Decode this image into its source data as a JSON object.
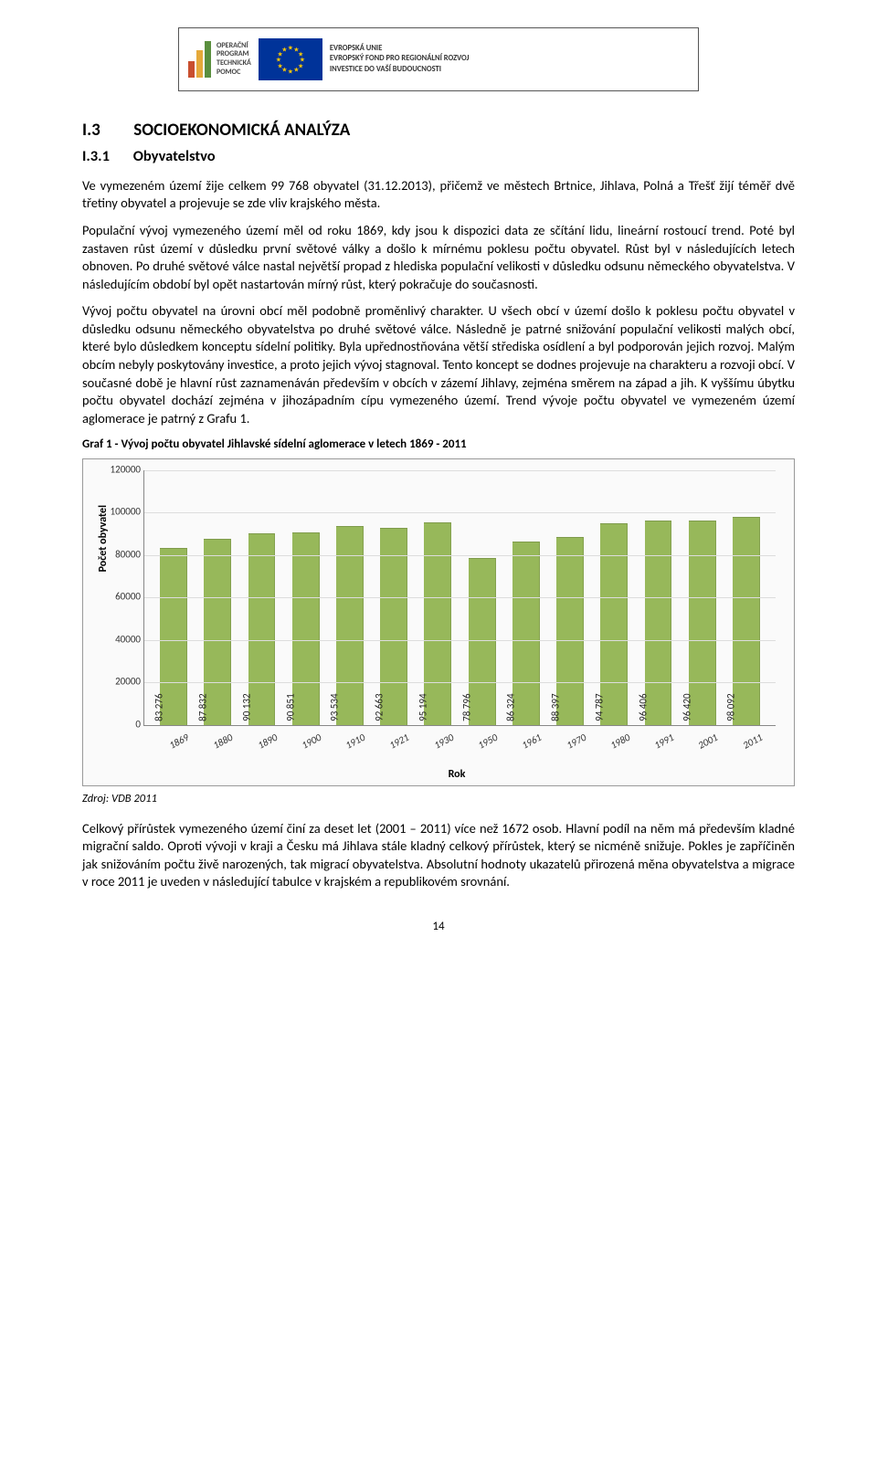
{
  "banner": {
    "program_lines": [
      "OPERAČNÍ",
      "PROGRAM",
      "TECHNICKÁ",
      "POMOC"
    ],
    "eu_lines": [
      "EVROPSKÁ UNIE",
      "EVROPSKÝ FOND PRO REGIONÁLNÍ ROZVOJ",
      "INVESTICE DO VAŠÍ BUDOUCNOSTI"
    ],
    "logo_colors": [
      "#c94f2f",
      "#e5a93a",
      "#5a8f3e"
    ]
  },
  "heading1_num": "I.3",
  "heading1_text": "SOCIOEKONOMICKÁ ANALÝZA",
  "heading2_num": "I.3.1",
  "heading2_text": "Obyvatelstvo",
  "p1": "Ve vymezeném území žije celkem 99 768 obyvatel (31.12.2013), přičemž ve městech Brtnice, Jihlava, Polná a Třešť žijí téměř dvě třetiny obyvatel a projevuje se zde vliv krajského města.",
  "p2": "Populační vývoj vymezeného území měl od roku 1869, kdy jsou k dispozici data ze sčítání lidu, lineární rostoucí trend. Poté byl zastaven růst území v důsledku první světové války a došlo k mírnému poklesu počtu obyvatel. Růst byl v následujících letech obnoven. Po druhé světové válce nastal největší propad z hlediska populační velikosti v důsledku odsunu německého obyvatelstva. V následujícím období byl opět nastartován mírný růst, který pokračuje do současnosti.",
  "p3": "Vývoj počtu obyvatel na úrovni obcí měl podobně proměnlivý charakter. U všech obcí v území došlo k poklesu počtu obyvatel v důsledku odsunu německého obyvatelstva po druhé světové válce. Následně je patrné snižování populační velikosti malých obcí, které bylo důsledkem konceptu sídelní politiky. Byla upřednostňována větší střediska osídlení a byl podporován jejich rozvoj. Malým obcím nebyly poskytovány investice, a proto jejich vývoj stagnoval. Tento koncept se dodnes projevuje na charakteru a rozvoji obcí. V současné době je hlavní růst zaznamenáván především v obcích v zázemí Jihlavy, zejména směrem na západ a jih. K vyššímu úbytku počtu obyvatel dochází zejména v jihozápadním cípu vymezeného území. Trend vývoje počtu obyvatel ve vymezeném území aglomerace je patrný z Grafu 1.",
  "chart_title": "Graf 1 - Vývoj počtu obyvatel Jihlavské sídelní aglomerace v letech 1869 - 2011",
  "chart": {
    "type": "bar",
    "y_label": "Počet obyvatel",
    "x_label": "Rok",
    "y_min": 0,
    "y_max": 120000,
    "y_tick_step": 20000,
    "y_ticks": [
      0,
      20000,
      40000,
      60000,
      80000,
      100000,
      120000
    ],
    "categories": [
      "1869",
      "1880",
      "1890",
      "1900",
      "1910",
      "1921",
      "1930",
      "1950",
      "1961",
      "1970",
      "1980",
      "1991",
      "2001",
      "2011"
    ],
    "values": [
      83276,
      87832,
      90132,
      90851,
      93534,
      92663,
      95194,
      78796,
      86324,
      88397,
      94787,
      96406,
      96420,
      98092
    ],
    "bar_color": "#97b85a",
    "grid_color": "#dddddd",
    "axis_color": "#888888",
    "background": "#fafafa",
    "label_fontsize": 11
  },
  "source": "Zdroj: VDB 2011",
  "p4": "Celkový přírůstek vymezeného území činí za deset let (2001 – 2011) více než 1672 osob. Hlavní podíl na něm má především kladné migrační saldo. Oproti vývoji v kraji a Česku má Jihlava stále kladný celkový přírůstek, který se nicméně snižuje. Pokles je zapříčiněn jak snižováním počtu živě narozených, tak migrací obyvatelstva. Absolutní hodnoty ukazatelů přirozená měna obyvatelstva a migrace v roce 2011 je uveden v následující tabulce v krajském a republikovém srovnání.",
  "page_number": "14"
}
